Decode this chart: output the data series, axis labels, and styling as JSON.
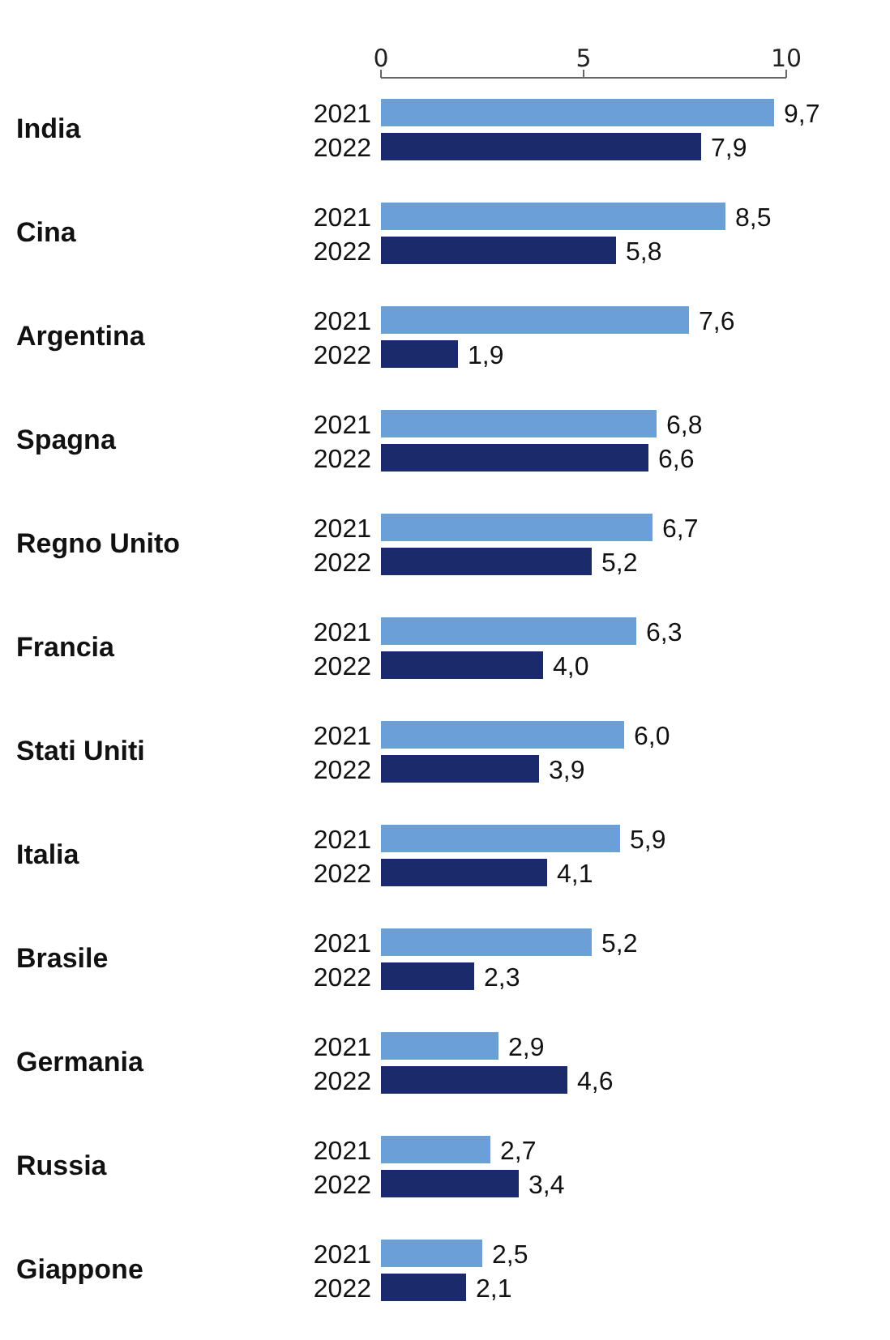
{
  "chart_data": {
    "type": "bar",
    "orientation": "horizontal",
    "categories": [
      "India",
      "Cina",
      "Argentina",
      "Spagna",
      "Regno Unito",
      "Francia",
      "Stati Uniti",
      "Italia",
      "Brasile",
      "Germania",
      "Russia",
      "Giappone"
    ],
    "series": [
      {
        "name": "2021",
        "color": "#6a9fd8",
        "values": [
          9.7,
          8.5,
          7.6,
          6.8,
          6.7,
          6.3,
          6.0,
          5.9,
          5.2,
          2.9,
          2.7,
          2.5
        ],
        "value_labels": [
          "9,7",
          "8,5",
          "7,6",
          "6,8",
          "6,7",
          "6,3",
          "6,0",
          "5,9",
          "5,2",
          "2,9",
          "2,7",
          "2,5"
        ]
      },
      {
        "name": "2022",
        "color": "#1b2a6b",
        "values": [
          7.9,
          5.8,
          1.9,
          6.6,
          5.2,
          4.0,
          3.9,
          4.1,
          2.3,
          4.6,
          3.4,
          2.1
        ],
        "value_labels": [
          "7,9",
          "5,8",
          "1,9",
          "6,6",
          "5,2",
          "4,0",
          "3,9",
          "4,1",
          "2,3",
          "4,6",
          "3,4",
          "2,1"
        ]
      }
    ],
    "x2lim": [
      0,
      10
    ],
    "x2ticks": [
      0,
      5,
      10
    ],
    "grid": false,
    "legend": false
  }
}
